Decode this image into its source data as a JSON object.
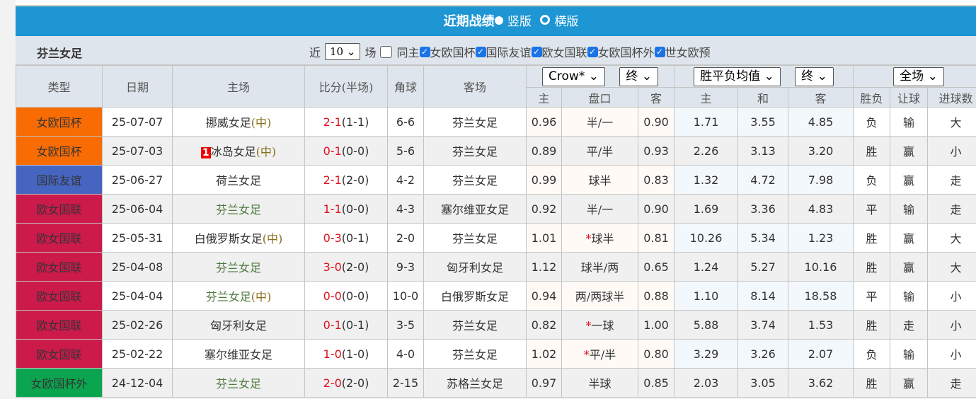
{
  "header": {
    "title": "近期战绩",
    "opt_vertical": "竖版",
    "opt_horizontal": "横版",
    "selected": "竖版"
  },
  "sub": {
    "team": "芬兰女足",
    "near": "近",
    "count": "10",
    "games": "场",
    "same_home": "同主",
    "filters": [
      {
        "label": "女欧国杯",
        "checked": true
      },
      {
        "label": "国际友谊",
        "checked": true
      },
      {
        "label": "欧女国联",
        "checked": true
      },
      {
        "label": "女欧国杯外",
        "checked": true
      },
      {
        "label": "世女欧预",
        "checked": true
      }
    ]
  },
  "columns": {
    "type": "类型",
    "date": "日期",
    "home": "主场",
    "score": "比分(半场)",
    "corner": "角球",
    "away": "客场",
    "company": "Crow*",
    "stage1": "终",
    "avg": "胜平负均值",
    "stage2": "终",
    "period": "全场",
    "sub": [
      "主",
      "盘口",
      "客",
      "主",
      "和",
      "客",
      "胜负",
      "让球",
      "进球数"
    ]
  },
  "colors": {
    "女欧国杯": "#f96c03",
    "国际友谊": "#4565c1",
    "欧女国联": "#cc1a4b",
    "女欧国杯外": "#0ba54f"
  },
  "rows": [
    {
      "type": "女欧国杯",
      "date": "25-07-07",
      "badge": "",
      "home": "挪威女足",
      "home_neutral": "(中)",
      "home_fin": false,
      "score": "2-1",
      "half": "(1-1)",
      "corner": "6-6",
      "away": "芬兰女足",
      "away_fin": true,
      "o_h": "0.96",
      "star": "",
      "line": "半/一",
      "o_a": "0.90",
      "w": "1.71",
      "d": "3.55",
      "l": "4.85",
      "res": "负",
      "hc": "输",
      "ou": "大"
    },
    {
      "type": "女欧国杯",
      "date": "25-07-03",
      "badge": "1",
      "home": "冰岛女足",
      "home_neutral": "(中)",
      "home_fin": false,
      "score": "0-1",
      "half": "(0-0)",
      "corner": "5-6",
      "away": "芬兰女足",
      "away_fin": true,
      "o_h": "0.89",
      "star": "",
      "line": "平/半",
      "o_a": "0.93",
      "w": "2.26",
      "d": "3.13",
      "l": "3.20",
      "res": "胜",
      "hc": "赢",
      "ou": "小"
    },
    {
      "type": "国际友谊",
      "date": "25-06-27",
      "badge": "",
      "home": "荷兰女足",
      "home_neutral": "",
      "home_fin": false,
      "score": "2-1",
      "half": "(2-0)",
      "corner": "4-2",
      "away": "芬兰女足",
      "away_fin": true,
      "o_h": "0.99",
      "star": "",
      "line": "球半",
      "o_a": "0.83",
      "w": "1.32",
      "d": "4.72",
      "l": "7.98",
      "res": "负",
      "hc": "赢",
      "ou": "走"
    },
    {
      "type": "欧女国联",
      "date": "25-06-04",
      "badge": "",
      "home": "芬兰女足",
      "home_neutral": "",
      "home_fin": true,
      "score": "1-1",
      "half": "(0-0)",
      "corner": "4-3",
      "away": "塞尔维亚女足",
      "away_fin": false,
      "o_h": "0.92",
      "star": "",
      "line": "半/一",
      "o_a": "0.90",
      "w": "1.69",
      "d": "3.36",
      "l": "4.83",
      "res": "平",
      "hc": "输",
      "ou": "走"
    },
    {
      "type": "欧女国联",
      "date": "25-05-31",
      "badge": "",
      "home": "白俄罗斯女足",
      "home_neutral": "(中)",
      "home_fin": false,
      "score": "0-3",
      "half": "(0-1)",
      "corner": "2-0",
      "away": "芬兰女足",
      "away_fin": true,
      "o_h": "1.01",
      "star": "*",
      "line": "球半",
      "o_a": "0.81",
      "w": "10.26",
      "d": "5.34",
      "l": "1.23",
      "res": "胜",
      "hc": "赢",
      "ou": "大"
    },
    {
      "type": "欧女国联",
      "date": "25-04-08",
      "badge": "",
      "home": "芬兰女足",
      "home_neutral": "",
      "home_fin": true,
      "score": "3-0",
      "half": "(2-0)",
      "corner": "9-3",
      "away": "匈牙利女足",
      "away_fin": false,
      "o_h": "1.12",
      "star": "",
      "line": "球半/两",
      "o_a": "0.65",
      "w": "1.24",
      "d": "5.27",
      "l": "10.16",
      "res": "胜",
      "hc": "赢",
      "ou": "大"
    },
    {
      "type": "欧女国联",
      "date": "25-04-04",
      "badge": "",
      "home": "芬兰女足",
      "home_neutral": "(中)",
      "home_fin": true,
      "score": "0-0",
      "half": "(0-0)",
      "corner": "10-0",
      "away": "白俄罗斯女足",
      "away_fin": false,
      "o_h": "0.94",
      "star": "",
      "line": "两/两球半",
      "o_a": "0.88",
      "w": "1.10",
      "d": "8.14",
      "l": "18.58",
      "res": "平",
      "hc": "输",
      "ou": "小"
    },
    {
      "type": "欧女国联",
      "date": "25-02-26",
      "badge": "",
      "home": "匈牙利女足",
      "home_neutral": "",
      "home_fin": false,
      "score": "0-1",
      "half": "(0-1)",
      "corner": "3-5",
      "away": "芬兰女足",
      "away_fin": true,
      "o_h": "0.82",
      "star": "*",
      "line": "一球",
      "o_a": "1.00",
      "w": "5.88",
      "d": "3.74",
      "l": "1.53",
      "res": "胜",
      "hc": "走",
      "ou": "小"
    },
    {
      "type": "欧女国联",
      "date": "25-02-22",
      "badge": "",
      "home": "塞尔维亚女足",
      "home_neutral": "",
      "home_fin": false,
      "score": "1-0",
      "half": "(1-0)",
      "corner": "4-0",
      "away": "芬兰女足",
      "away_fin": true,
      "o_h": "1.02",
      "star": "*",
      "line": "平/半",
      "o_a": "0.80",
      "w": "3.29",
      "d": "3.26",
      "l": "2.07",
      "res": "负",
      "hc": "输",
      "ou": "小"
    },
    {
      "type": "女欧国杯外",
      "date": "24-12-04",
      "badge": "",
      "home": "芬兰女足",
      "home_neutral": "",
      "home_fin": true,
      "score": "2-0",
      "half": "(2-0)",
      "corner": "2-15",
      "away": "苏格兰女足",
      "away_fin": false,
      "o_h": "0.97",
      "star": "",
      "line": "半球",
      "o_a": "0.85",
      "w": "2.03",
      "d": "3.05",
      "l": "3.62",
      "res": "胜",
      "hc": "赢",
      "ou": "走"
    }
  ]
}
